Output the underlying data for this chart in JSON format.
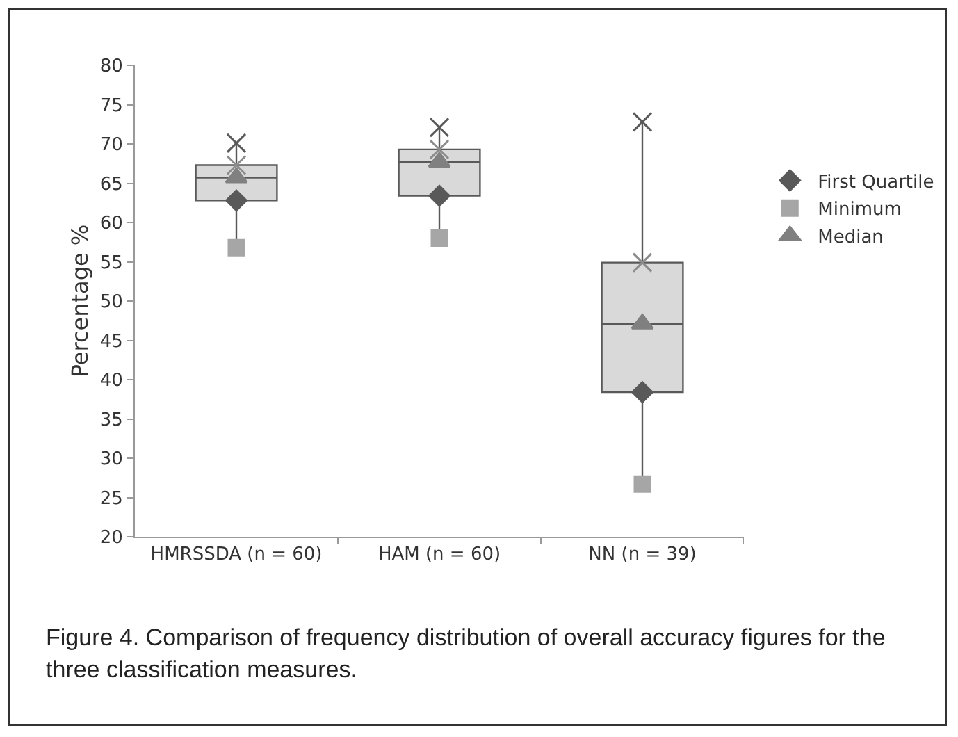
{
  "chart_data": {
    "type": "box",
    "ylabel": "Percentage %",
    "categories": [
      "HMRSSDA (n = 60)",
      "HAM (n = 60)",
      "NN (n = 39)"
    ],
    "boxes": [
      {
        "low": 56.8,
        "q1": 62.8,
        "median": 65.7,
        "q3": 67.3,
        "high": 70.1
      },
      {
        "low": 58.0,
        "q1": 63.4,
        "median": 67.7,
        "q3": 69.3,
        "high": 72.1
      },
      {
        "low": 26.7,
        "q1": 38.4,
        "median": 47.1,
        "q3": 54.9,
        "high": 72.8
      }
    ],
    "color": "#d9d9d9",
    "series": [
      {
        "type": "scatter",
        "name": "First Quartile",
        "color": "#595959",
        "marker": "diamond",
        "x": [
          "HMRSSDA (n = 60)",
          "HAM (n = 60)",
          "NN (n = 39)"
        ],
        "values": [
          62.8,
          63.4,
          38.4
        ]
      },
      {
        "type": "scatter",
        "name": "Minimum",
        "color": "#a6a6a6",
        "marker": "square",
        "x": [
          "HMRSSDA (n = 60)",
          "HAM (n = 60)",
          "NN (n = 39)"
        ],
        "values": [
          56.8,
          58.0,
          26.7
        ]
      },
      {
        "type": "scatter",
        "name": "Median",
        "color": "#808080",
        "marker": "triangle",
        "x": [
          "HMRSSDA (n = 60)",
          "HAM (n = 60)",
          "NN (n = 39)"
        ],
        "values": [
          65.7,
          67.7,
          47.1
        ]
      },
      {
        "type": "scatter",
        "color": "#8c8c8c",
        "marker": "cross",
        "x": [
          "HMRSSDA (n = 60)",
          "HAM (n = 60)",
          "NN (n = 39)"
        ],
        "values": [
          67.3,
          69.3,
          54.9
        ]
      },
      {
        "type": "scatter",
        "color": "#595959",
        "marker": "cross",
        "x": [
          "HMRSSDA (n = 60)",
          "HAM (n = 60)",
          "NN (n = 39)"
        ],
        "values": [
          70.1,
          72.1,
          72.8
        ]
      }
    ],
    "ylim": [
      20,
      80
    ],
    "yticks": [
      20,
      25,
      30,
      35,
      40,
      45,
      50,
      55,
      60,
      65,
      70,
      75,
      80
    ],
    "legend": "right",
    "annotations": [
      "Figure 4.  Comparison of frequency distribution of overall accuracy figures for the three classification measures."
    ]
  }
}
